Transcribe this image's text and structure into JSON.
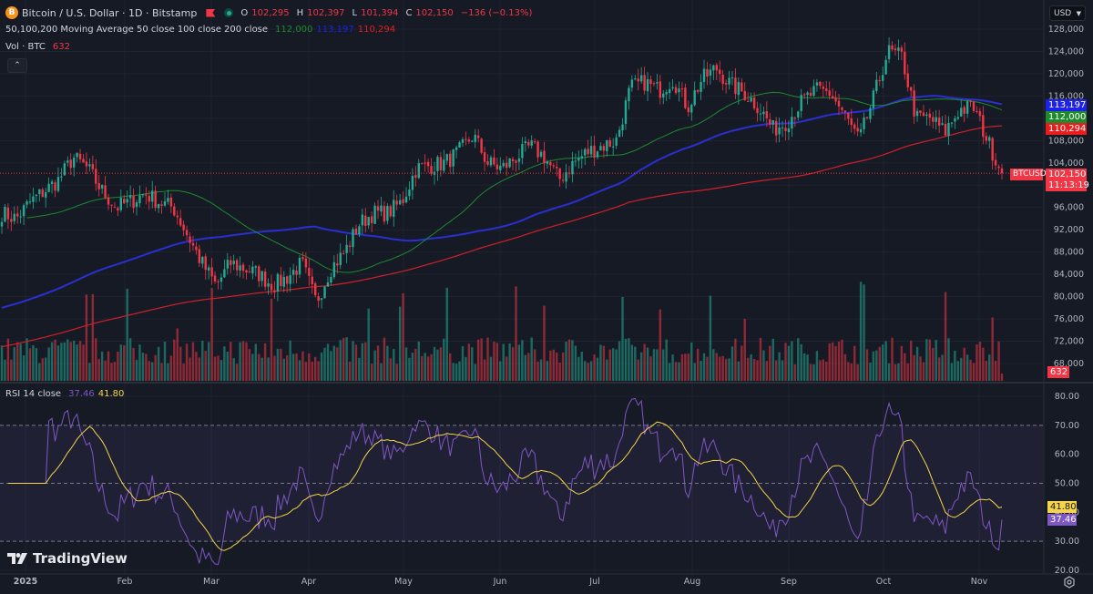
{
  "header": {
    "symbol_title": "Bitcoin / U.S. Dollar · 1D · Bitstamp",
    "coin_icon_letter": "B",
    "ohlc": {
      "o_label": "O",
      "o": "102,295",
      "h_label": "H",
      "h": "102,397",
      "l_label": "L",
      "l": "101,394",
      "c_label": "C",
      "c": "102,150",
      "change": "−136 (−0.13%)"
    },
    "ma_legend": "50,100,200 Moving Average 50 close 100 close 200 close",
    "ma_values": {
      "ma50": "112,000",
      "ma100": "113,197",
      "ma200": "110,294"
    },
    "vol_legend": "Vol · BTC",
    "vol_value": "632",
    "collapse_icon": "chevron-up-icon"
  },
  "currency_select": {
    "value": "USD"
  },
  "price_axis": {
    "ticks": [
      "128,000",
      "124,000",
      "120,000",
      "116,000",
      "112,000",
      "108,000",
      "104,000",
      "100,000",
      "96,000",
      "92,000",
      "88,000",
      "84,000",
      "80,000",
      "76,000",
      "72,000",
      "68,000"
    ],
    "tags": {
      "ma100": {
        "value": "113,197",
        "color": "#1e22e8"
      },
      "ma50": {
        "value": "112,000",
        "color": "#1e8a2e"
      },
      "ma200": {
        "value": "110,294",
        "color": "#e81e1e"
      },
      "last_price": {
        "value": "102,150",
        "countdown": "11:13:19",
        "color": "#f23645"
      },
      "symbol_label": "BTCUSD",
      "volume": {
        "value": "632",
        "color": "#f23645"
      }
    }
  },
  "rsi": {
    "legend": "RSI 14 close",
    "rsi_value": "37.46",
    "ma_value": "41.80",
    "ticks": [
      "80.00",
      "70.00",
      "60.00",
      "50.00",
      "40.00",
      "30.00",
      "20.00"
    ],
    "tags": {
      "ma": {
        "value": "41.80",
        "color": "#f5d547"
      },
      "rsi": {
        "value": "37.46",
        "color": "#7e57c2"
      }
    }
  },
  "time_axis": {
    "labels": [
      "2025",
      "Feb",
      "Mar",
      "Apr",
      "May",
      "Jun",
      "Jul",
      "Aug",
      "Sep",
      "Oct",
      "Nov"
    ]
  },
  "branding": {
    "logo_text": "TradingView"
  },
  "colors": {
    "up": "#22ab94",
    "down": "#f23645",
    "background": "#161a25",
    "ma50": "#1e8a2e",
    "ma100": "#2a2fd0",
    "ma200": "#d0202a",
    "rsi_line": "#7e57c2",
    "rsi_ma": "#f5d547"
  },
  "chart_data": {
    "type": "candlestick",
    "title": "Bitcoin / U.S. Dollar · 1D · Bitstamp",
    "x_range": [
      "2024-12-24",
      "2025-11-07"
    ],
    "ylim": [
      66000,
      130000
    ],
    "grid": true,
    "weekly_closes": [
      95000,
      94000,
      97000,
      99000,
      101000,
      105000,
      103000,
      99000,
      96000,
      97000,
      98500,
      97000,
      96000,
      91000,
      86000,
      82000,
      86000,
      85000,
      84000,
      82000,
      83500,
      86000,
      79000,
      85000,
      88000,
      93000,
      95000,
      95000,
      97000,
      103000,
      103500,
      104000,
      106000,
      109000,
      104000,
      103000,
      105000,
      107000,
      105000,
      101000,
      104000,
      106000,
      107000,
      108000,
      117500,
      118500,
      117000,
      119000,
      114000,
      119000,
      121000,
      118000,
      116500,
      114000,
      110000,
      111500,
      115000,
      117000,
      116500,
      112500,
      108000,
      115500,
      124000,
      123000,
      112000,
      112000,
      109500,
      113500,
      114000,
      108000,
      102150
    ],
    "series": [
      {
        "name": "MA50",
        "last": 112000
      },
      {
        "name": "MA100",
        "last": 113197
      },
      {
        "name": "MA200",
        "last": 110294
      },
      {
        "name": "Volume BTC",
        "last": 632
      },
      {
        "name": "RSI 14",
        "last": 37.46
      },
      {
        "name": "RSI MA",
        "last": 41.8
      }
    ],
    "rsi_bands": {
      "upper": 70,
      "middle": 50,
      "lower": 30
    }
  }
}
